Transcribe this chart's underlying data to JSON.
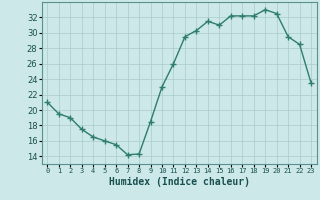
{
  "x": [
    0,
    1,
    2,
    3,
    4,
    5,
    6,
    7,
    8,
    9,
    10,
    11,
    12,
    13,
    14,
    15,
    16,
    17,
    18,
    19,
    20,
    21,
    22,
    23
  ],
  "humidex_values": [
    21,
    19.5,
    19,
    17.5,
    16.5,
    16,
    15.5,
    14.2,
    14.3,
    18.5,
    23,
    26,
    29.5,
    30.3,
    31.5,
    31,
    32.2,
    32.2,
    32.2,
    33,
    32.5,
    29.5,
    28.5,
    23.5
  ],
  "line_color": "#2e7d6e",
  "marker": "+",
  "marker_size": 4,
  "bg_color": "#cce8e8",
  "grid_color": "#aacccc",
  "xlabel": "Humidex (Indice chaleur)",
  "ylim": [
    13,
    34
  ],
  "xlim": [
    -0.5,
    23.5
  ],
  "yticks": [
    14,
    16,
    18,
    20,
    22,
    24,
    26,
    28,
    30,
    32
  ],
  "xticks": [
    0,
    1,
    2,
    3,
    4,
    5,
    6,
    7,
    8,
    9,
    10,
    11,
    12,
    13,
    14,
    15,
    16,
    17,
    18,
    19,
    20,
    21,
    22,
    23
  ],
  "xtick_labels": [
    "0",
    "1",
    "2",
    "3",
    "4",
    "5",
    "6",
    "7",
    "8",
    "9",
    "10",
    "11",
    "12",
    "13",
    "14",
    "15",
    "16",
    "17",
    "18",
    "19",
    "20",
    "21",
    "22",
    "23"
  ]
}
